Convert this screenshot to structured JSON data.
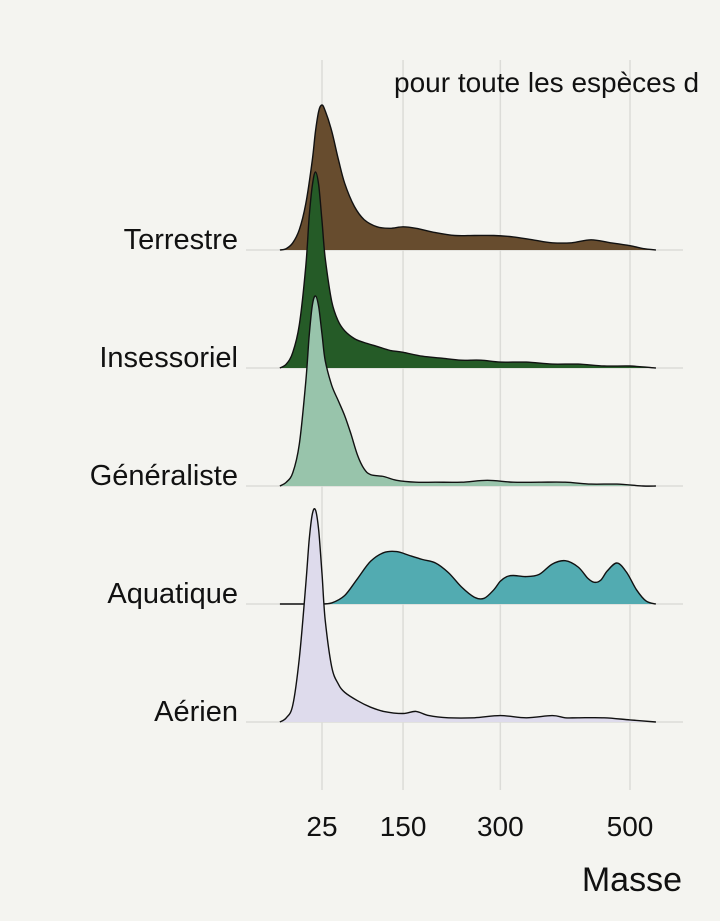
{
  "chart_data": {
    "type": "ridgeline",
    "subtitle": "pour toute les espèces d",
    "xlabel": "Masse",
    "xticks": [
      25,
      150,
      300,
      500
    ],
    "xlim": [
      -40,
      540
    ],
    "grid": true,
    "series": [
      {
        "name": "Terrestre",
        "color": "#674c2e",
        "x": [
          -40,
          -30,
          -20,
          -10,
          0,
          10,
          15,
          20,
          25,
          30,
          40,
          50,
          60,
          75,
          90,
          110,
          130,
          150,
          170,
          200,
          230,
          260,
          290,
          320,
          350,
          380,
          410,
          440,
          470,
          500,
          520,
          540
        ],
        "density": [
          0,
          0.01,
          0.05,
          0.14,
          0.32,
          0.62,
          0.82,
          0.96,
          1.0,
          0.96,
          0.82,
          0.63,
          0.46,
          0.3,
          0.21,
          0.16,
          0.15,
          0.16,
          0.15,
          0.12,
          0.1,
          0.1,
          0.1,
          0.09,
          0.07,
          0.05,
          0.05,
          0.07,
          0.05,
          0.03,
          0.01,
          0.0
        ]
      },
      {
        "name": "Insessoriel",
        "color": "#255b27",
        "x": [
          -40,
          -30,
          -20,
          -10,
          0,
          5,
          10,
          15,
          20,
          25,
          30,
          40,
          50,
          60,
          75,
          90,
          110,
          130,
          150,
          180,
          210,
          240,
          270,
          300,
          340,
          380,
          420,
          460,
          500,
          540
        ],
        "density": [
          0,
          0.02,
          0.08,
          0.22,
          0.52,
          0.76,
          0.93,
          1.0,
          0.93,
          0.75,
          0.56,
          0.34,
          0.24,
          0.19,
          0.15,
          0.13,
          0.11,
          0.09,
          0.08,
          0.06,
          0.05,
          0.04,
          0.04,
          0.03,
          0.03,
          0.02,
          0.02,
          0.01,
          0.01,
          0.0
        ]
      },
      {
        "name": "Généraliste",
        "color": "#98c4ab",
        "x": [
          -40,
          -30,
          -20,
          -10,
          0,
          5,
          10,
          15,
          20,
          25,
          30,
          40,
          50,
          60,
          70,
          80,
          90,
          100,
          120,
          140,
          170,
          200,
          240,
          280,
          320,
          360,
          400,
          440,
          480,
          520,
          540
        ],
        "density": [
          0,
          0.02,
          0.07,
          0.22,
          0.55,
          0.78,
          0.95,
          1.0,
          0.94,
          0.8,
          0.66,
          0.53,
          0.45,
          0.37,
          0.27,
          0.16,
          0.09,
          0.06,
          0.05,
          0.03,
          0.02,
          0.02,
          0.02,
          0.03,
          0.02,
          0.02,
          0.02,
          0.01,
          0.01,
          0.0,
          0.0
        ]
      },
      {
        "name": "Aquatique",
        "color": "#52abb1",
        "x": [
          -40,
          0,
          20,
          40,
          60,
          80,
          100,
          120,
          140,
          160,
          180,
          200,
          220,
          240,
          260,
          275,
          290,
          300,
          310,
          320,
          340,
          360,
          380,
          400,
          420,
          435,
          445,
          455,
          465,
          480,
          495,
          510,
          525,
          540
        ],
        "density": [
          0,
          0,
          0,
          0.02,
          0.15,
          0.45,
          0.75,
          0.9,
          0.92,
          0.85,
          0.78,
          0.72,
          0.55,
          0.3,
          0.12,
          0.1,
          0.25,
          0.4,
          0.48,
          0.5,
          0.48,
          0.52,
          0.7,
          0.76,
          0.65,
          0.45,
          0.38,
          0.42,
          0.58,
          0.72,
          0.55,
          0.25,
          0.05,
          0.0
        ]
      },
      {
        "name": "Aérien",
        "color": "#dedbec",
        "x": [
          -40,
          -30,
          -20,
          -10,
          0,
          5,
          10,
          15,
          20,
          25,
          30,
          40,
          50,
          60,
          80,
          100,
          120,
          150,
          170,
          190,
          220,
          260,
          300,
          340,
          380,
          400,
          420,
          460,
          500,
          540
        ],
        "density": [
          0,
          0.02,
          0.08,
          0.3,
          0.65,
          0.85,
          0.98,
          1.0,
          0.9,
          0.7,
          0.48,
          0.26,
          0.18,
          0.14,
          0.1,
          0.07,
          0.05,
          0.04,
          0.05,
          0.03,
          0.02,
          0.02,
          0.03,
          0.02,
          0.03,
          0.02,
          0.02,
          0.02,
          0.01,
          0.0
        ]
      }
    ]
  }
}
